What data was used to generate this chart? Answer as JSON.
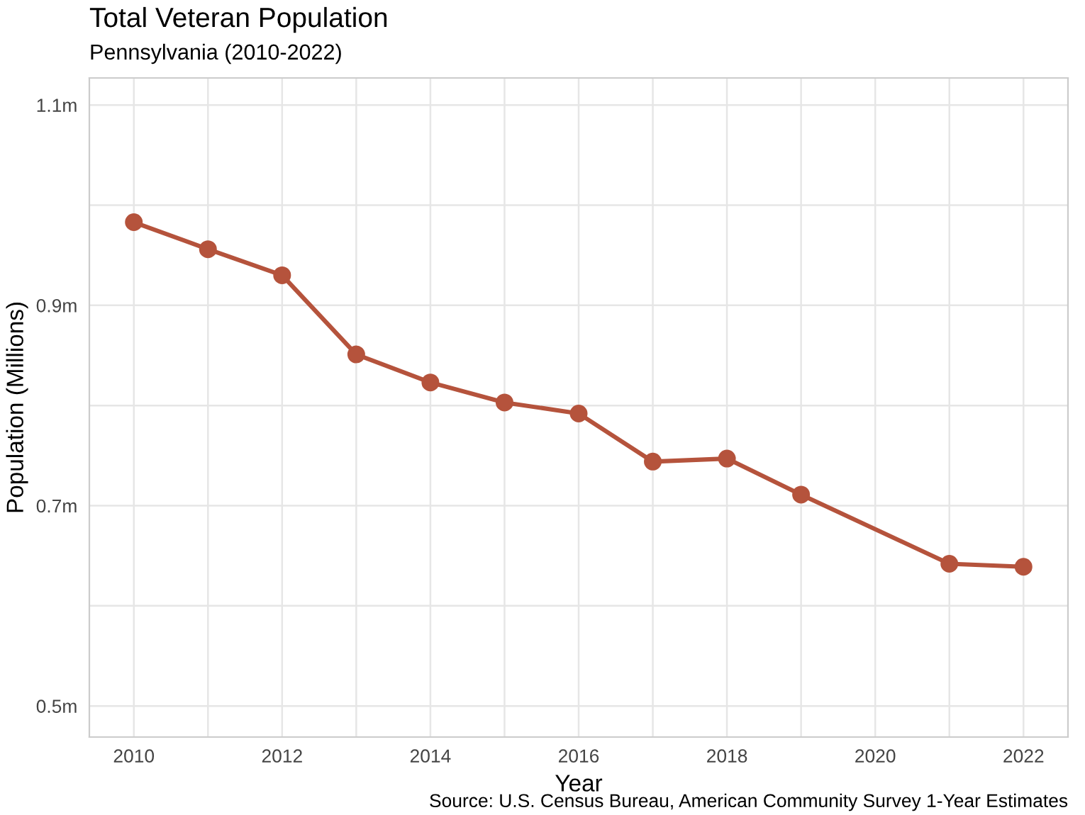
{
  "chart_data": {
    "type": "line",
    "title": "Total Veteran Population",
    "subtitle": "Pennsylvania (2010-2022)",
    "xlabel": "Year",
    "ylabel": "Population (Millions)",
    "annotations": [
      "Source: U.S. Census Bureau, American Community Survey 1-Year Estimates"
    ],
    "series": [
      {
        "color": "#b5533c",
        "x": [
          2010,
          2011,
          2012,
          2013,
          2014,
          2015,
          2016,
          2017,
          2018,
          2019,
          2021,
          2022
        ],
        "values": [
          0.983,
          0.956,
          0.93,
          0.851,
          0.823,
          0.803,
          0.792,
          0.744,
          0.747,
          0.711,
          0.642,
          0.639
        ]
      }
    ],
    "marker": "circle",
    "line_style": "solid",
    "grid": true,
    "xlim": [
      2009.4,
      2022.6
    ],
    "xticks": [
      2010,
      {
        "value": 2011,
        "label": null
      },
      2012,
      {
        "value": 2013,
        "label": null
      },
      2014,
      {
        "value": 2015,
        "label": null
      },
      2016,
      {
        "value": 2017,
        "label": null
      },
      2018,
      {
        "value": 2019,
        "label": null
      },
      2020,
      {
        "value": 2021,
        "label": null
      },
      2022
    ],
    "ylim": [
      0.469,
      1.127
    ],
    "yticks": [
      {
        "value": 0.5,
        "label": "0.5m"
      },
      {
        "value": 0.6,
        "label": null
      },
      {
        "value": 0.7,
        "label": "0.7m"
      },
      {
        "value": 0.8,
        "label": null
      },
      {
        "value": 0.9,
        "label": "0.9m"
      },
      {
        "value": 1.0,
        "label": null
      },
      {
        "value": 1.1,
        "label": "1.1m"
      }
    ]
  }
}
